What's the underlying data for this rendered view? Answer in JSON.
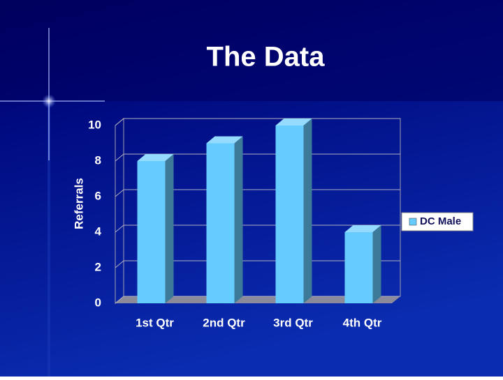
{
  "chart_data": {
    "type": "bar",
    "title": "The Data",
    "y_label": "Referrals",
    "categories": [
      "1st Qtr",
      "2nd Qtr",
      "3rd Qtr",
      "4th Qtr"
    ],
    "series": [
      {
        "name": "DC Male",
        "color": "#66ccff",
        "values": [
          8,
          9,
          10,
          4
        ]
      }
    ],
    "ylim": [
      0,
      10
    ],
    "yticks": [
      0,
      2,
      4,
      6,
      8,
      10
    ],
    "grid": true,
    "legend": "right"
  }
}
